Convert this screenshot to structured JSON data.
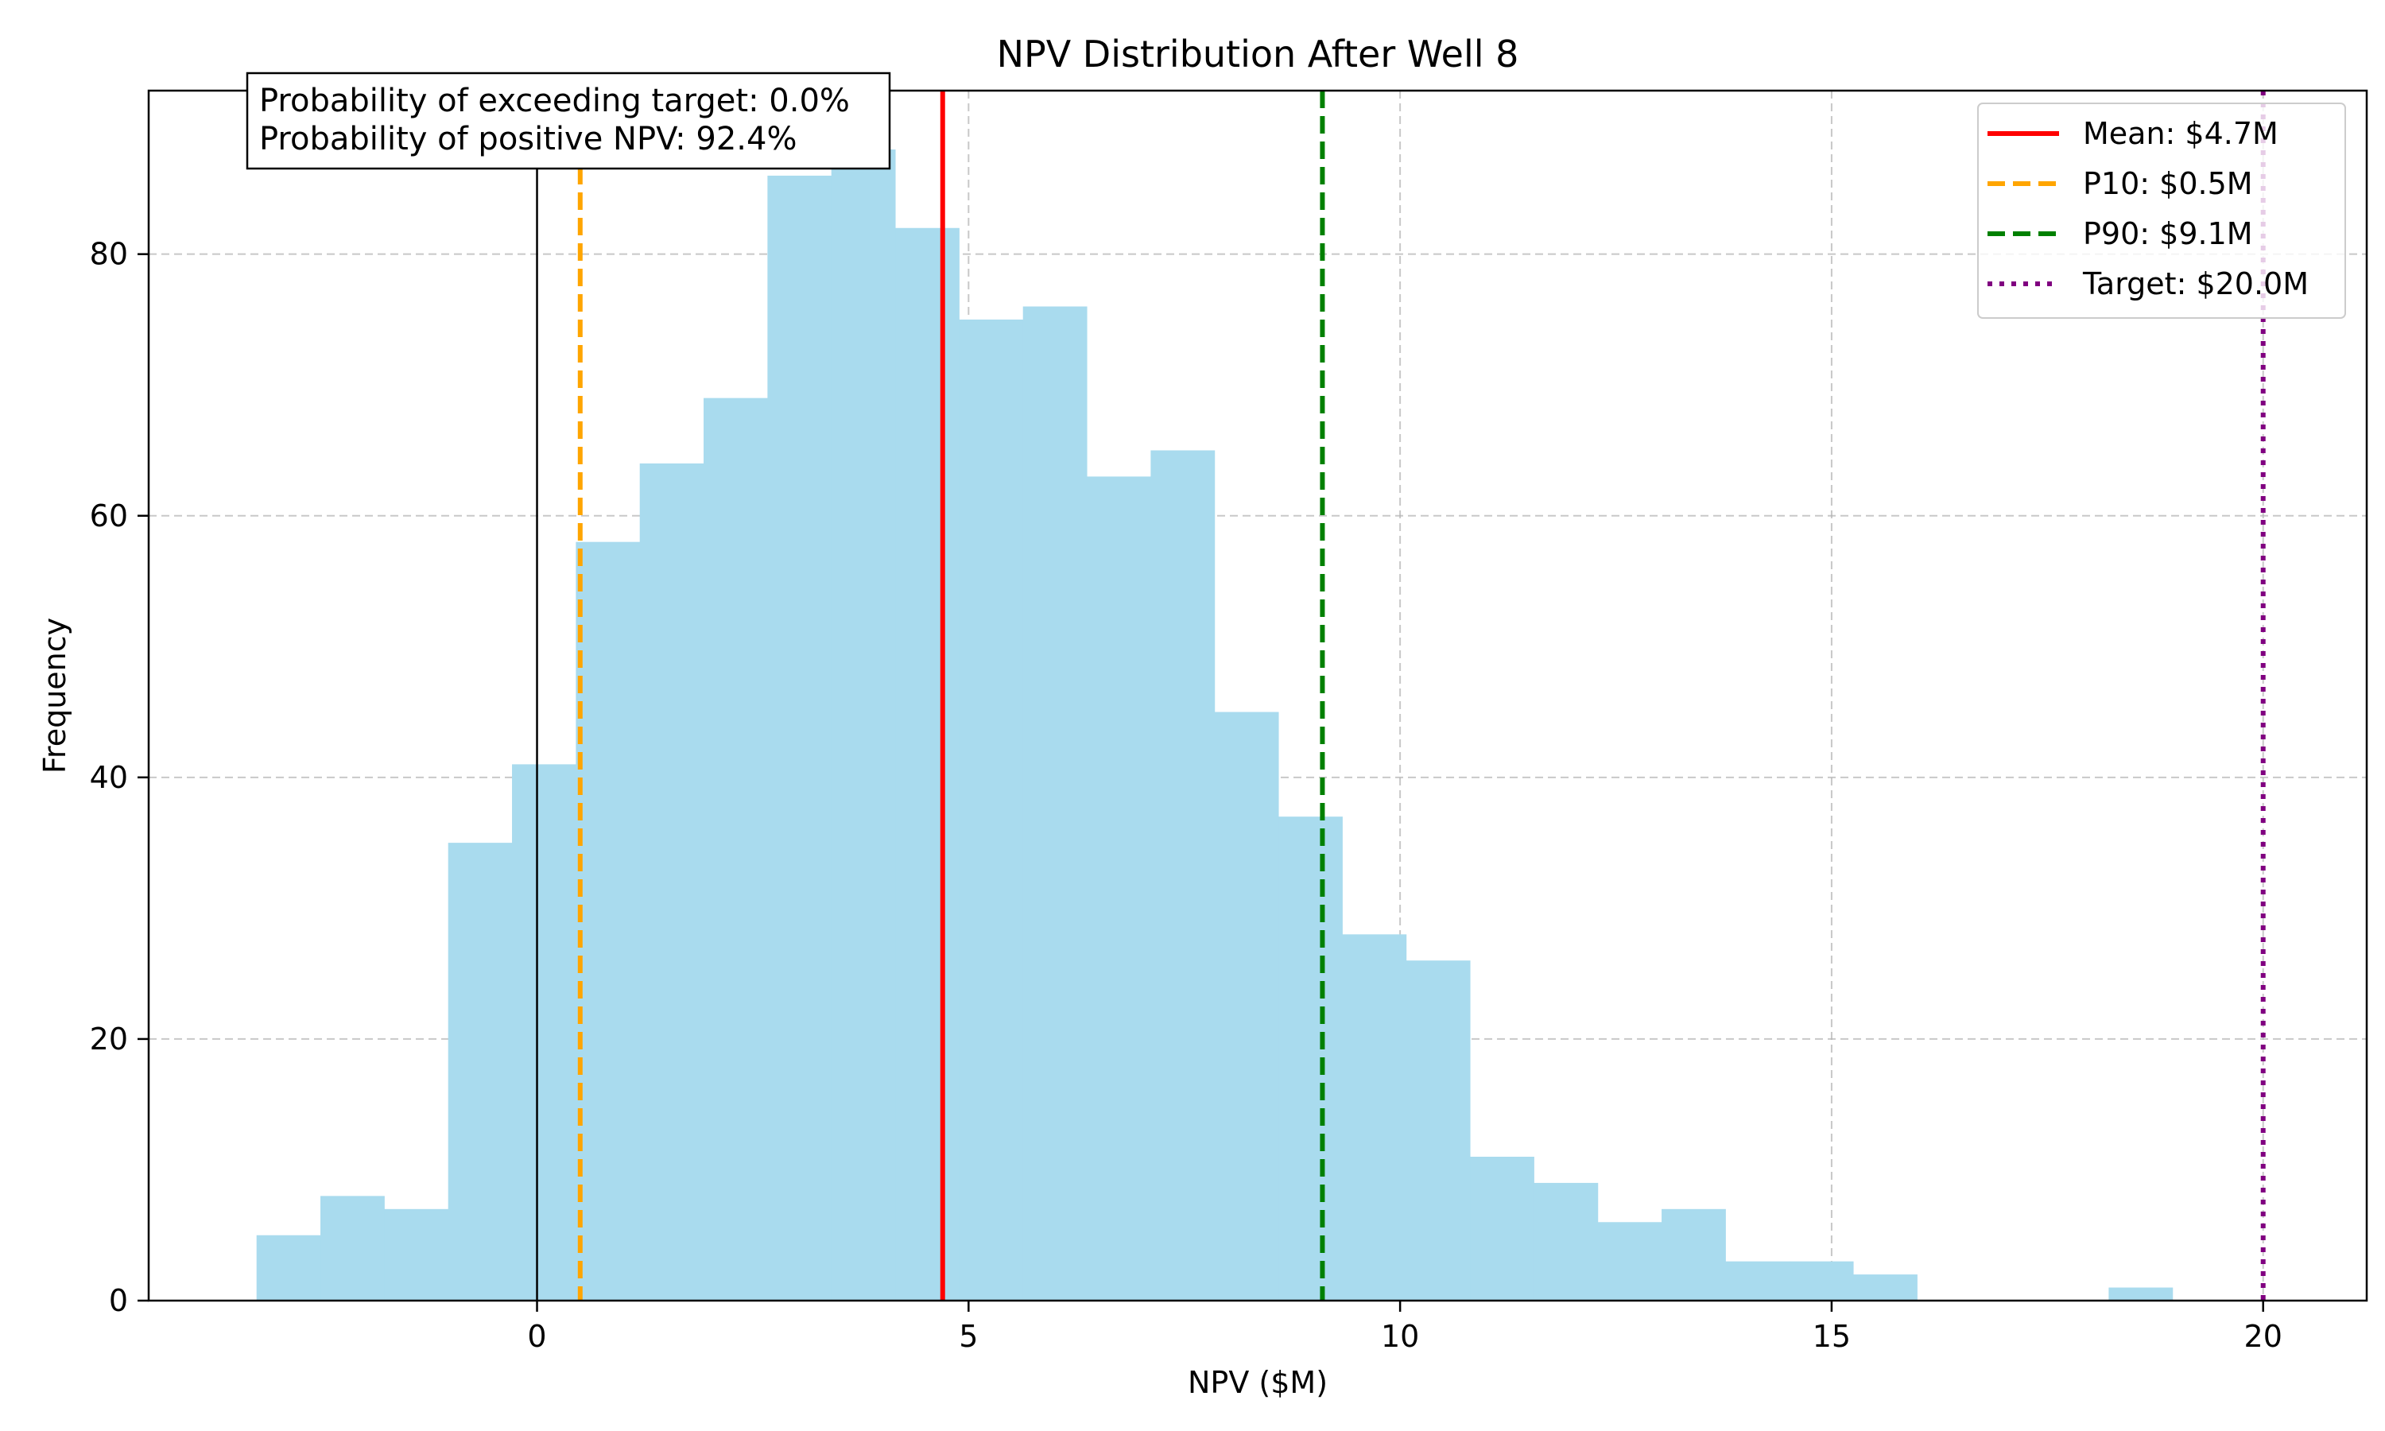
{
  "chart_data": {
    "type": "bar",
    "title": "NPV Distribution After Well 8",
    "xlabel": "NPV ($M)",
    "ylabel": "Frequency",
    "xlim": [
      -4.5,
      21.2
    ],
    "ylim": [
      0,
      92.5
    ],
    "xticks": [
      0,
      5,
      10,
      15,
      20
    ],
    "yticks": [
      0,
      20,
      40,
      60,
      80
    ],
    "grid": true,
    "legend_position": "top-right",
    "bar_color": "#a9dbee",
    "bins": [
      {
        "x0": -3.25,
        "x1": -2.51,
        "count": 5
      },
      {
        "x0": -2.51,
        "x1": -1.77,
        "count": 8
      },
      {
        "x0": -1.77,
        "x1": -1.03,
        "count": 7
      },
      {
        "x0": -1.03,
        "x1": -0.29,
        "count": 35
      },
      {
        "x0": -0.29,
        "x1": 0.45,
        "count": 41
      },
      {
        "x0": 0.45,
        "x1": 1.19,
        "count": 58
      },
      {
        "x0": 1.19,
        "x1": 1.93,
        "count": 64
      },
      {
        "x0": 1.93,
        "x1": 2.67,
        "count": 69
      },
      {
        "x0": 2.67,
        "x1": 3.41,
        "count": 86
      },
      {
        "x0": 3.41,
        "x1": 4.15,
        "count": 88
      },
      {
        "x0": 4.15,
        "x1": 4.89,
        "count": 82
      },
      {
        "x0": 4.89,
        "x1": 5.63,
        "count": 75
      },
      {
        "x0": 5.63,
        "x1": 6.37,
        "count": 76
      },
      {
        "x0": 6.37,
        "x1": 7.11,
        "count": 63
      },
      {
        "x0": 7.11,
        "x1": 7.85,
        "count": 65
      },
      {
        "x0": 7.85,
        "x1": 8.59,
        "count": 45
      },
      {
        "x0": 8.59,
        "x1": 9.33,
        "count": 37
      },
      {
        "x0": 9.33,
        "x1": 10.07,
        "count": 28
      },
      {
        "x0": 10.07,
        "x1": 10.81,
        "count": 26
      },
      {
        "x0": 10.81,
        "x1": 11.55,
        "count": 11
      },
      {
        "x0": 11.55,
        "x1": 12.29,
        "count": 9
      },
      {
        "x0": 12.29,
        "x1": 13.03,
        "count": 6
      },
      {
        "x0": 13.03,
        "x1": 13.77,
        "count": 7
      },
      {
        "x0": 13.77,
        "x1": 14.51,
        "count": 3
      },
      {
        "x0": 14.51,
        "x1": 15.25,
        "count": 3
      },
      {
        "x0": 15.25,
        "x1": 15.99,
        "count": 2
      },
      {
        "x0": 15.99,
        "x1": 16.73,
        "count": 0
      },
      {
        "x0": 16.73,
        "x1": 17.47,
        "count": 0
      },
      {
        "x0": 17.47,
        "x1": 18.21,
        "count": 0
      },
      {
        "x0": 18.21,
        "x1": 18.95,
        "count": 1
      }
    ],
    "reference_lines": [
      {
        "key": "mean",
        "label": "Mean: $4.7M",
        "x": 4.7,
        "color": "#ff0000",
        "style": "solid"
      },
      {
        "key": "p10",
        "label": "P10: $0.5M",
        "x": 0.5,
        "color": "#ffa500",
        "style": "dashed"
      },
      {
        "key": "p90",
        "label": "P90: $9.1M",
        "x": 9.1,
        "color": "#008000",
        "style": "dashed"
      },
      {
        "key": "target",
        "label": "Target: $20.0M",
        "x": 20.0,
        "color": "#800080",
        "style": "dotted"
      }
    ],
    "zero_line": {
      "x": 0,
      "color": "#000000"
    },
    "annotation": [
      "Probability of exceeding target: 0.0%",
      "Probability of positive NPV: 92.4%"
    ]
  }
}
